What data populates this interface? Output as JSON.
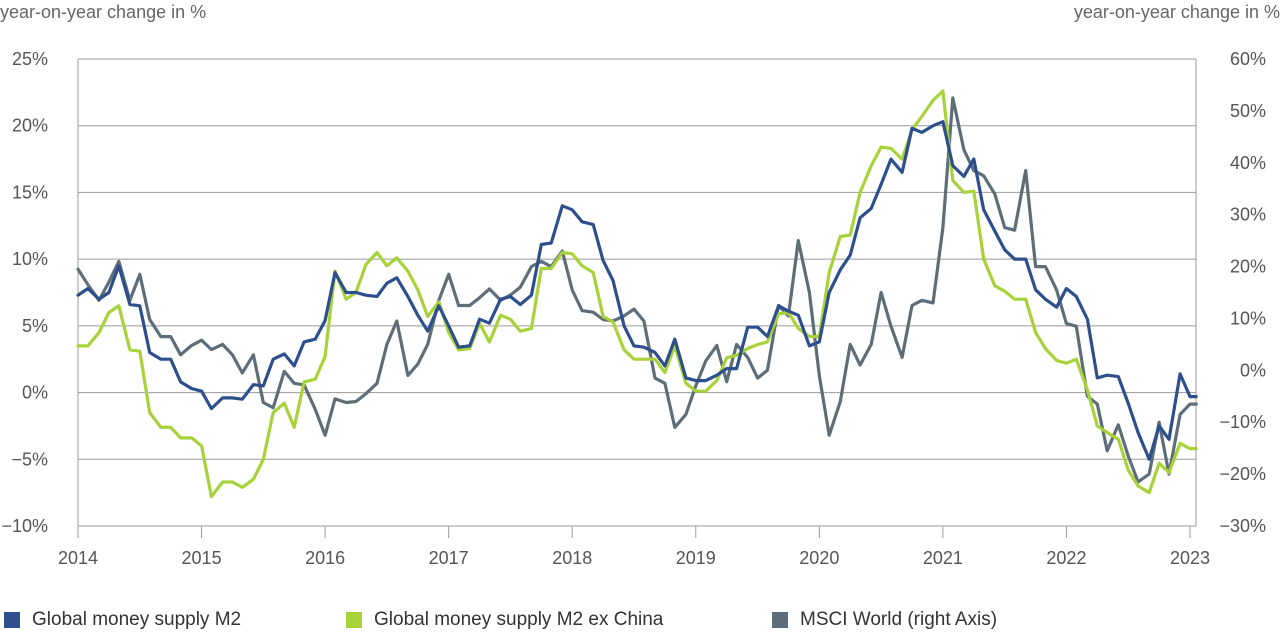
{
  "chart_data": {
    "type": "line",
    "left_axis": {
      "title": "year-on-year change in %",
      "ylim": [
        -10,
        25
      ],
      "ticks": [
        25,
        20,
        15,
        10,
        5,
        0,
        -5,
        -10
      ],
      "tick_labels": [
        "25%",
        "20%",
        "15%",
        "10%",
        "5%",
        "0%",
        "−5%",
        "−10%"
      ]
    },
    "right_axis": {
      "title": "year-on-year change in %",
      "ylim": [
        -30,
        60
      ],
      "ticks": [
        60,
        50,
        40,
        30,
        20,
        10,
        0,
        -10,
        -20,
        -30
      ],
      "tick_labels": [
        "60%",
        "50%",
        "40%",
        "30%",
        "20%",
        "10%",
        "0%",
        "−10%",
        "−20%",
        "−30%"
      ]
    },
    "x_axis": {
      "xlim": [
        2014.0,
        2023.1
      ],
      "ticks": [
        2014,
        2015,
        2016,
        2017,
        2018,
        2019,
        2020,
        2021,
        2022,
        2023
      ],
      "tick_labels": [
        "2014",
        "2015",
        "2016",
        "2017",
        "2018",
        "2019",
        "2020",
        "2021",
        "2022",
        "2023"
      ]
    },
    "grid": "horizontal",
    "legend_position": "bottom",
    "series": [
      {
        "name": "Global money supply M2",
        "axis": "left",
        "color": "#2d4f8e",
        "x": [
          2014.0,
          2014.08,
          2014.17,
          2014.25,
          2014.33,
          2014.42,
          2014.5,
          2014.58,
          2014.67,
          2014.75,
          2014.83,
          2014.92,
          2015.0,
          2015.08,
          2015.17,
          2015.25,
          2015.33,
          2015.42,
          2015.5,
          2015.58,
          2015.67,
          2015.75,
          2015.83,
          2015.92,
          2016.0,
          2016.08,
          2016.17,
          2016.25,
          2016.33,
          2016.42,
          2016.5,
          2016.58,
          2016.67,
          2016.75,
          2016.83,
          2016.92,
          2017.0,
          2017.08,
          2017.17,
          2017.25,
          2017.33,
          2017.42,
          2017.5,
          2017.58,
          2017.67,
          2017.75,
          2017.83,
          2017.92,
          2018.0,
          2018.08,
          2018.17,
          2018.25,
          2018.33,
          2018.42,
          2018.5,
          2018.58,
          2018.67,
          2018.75,
          2018.83,
          2018.92,
          2019.0,
          2019.08,
          2019.17,
          2019.25,
          2019.33,
          2019.42,
          2019.5,
          2019.58,
          2019.67,
          2019.75,
          2019.83,
          2019.92,
          2020.0,
          2020.08,
          2020.17,
          2020.25,
          2020.33,
          2020.42,
          2020.5,
          2020.58,
          2020.67,
          2020.75,
          2020.83,
          2020.92,
          2021.0,
          2021.08,
          2021.17,
          2021.25,
          2021.33,
          2021.42,
          2021.5,
          2021.58,
          2021.67,
          2021.75,
          2021.83,
          2021.92,
          2022.0,
          2022.08,
          2022.17,
          2022.25,
          2022.33,
          2022.42,
          2022.5,
          2022.58,
          2022.67,
          2022.75,
          2022.83,
          2022.92,
          2023.0,
          2023.05
        ],
        "values": [
          7.3,
          7.8,
          7.0,
          7.5,
          9.5,
          6.6,
          6.5,
          3.0,
          2.5,
          2.5,
          0.8,
          0.3,
          0.1,
          -1.2,
          -0.4,
          -0.4,
          -0.5,
          0.6,
          0.5,
          2.5,
          2.9,
          2.0,
          3.8,
          4.0,
          5.4,
          9.0,
          7.5,
          7.5,
          7.3,
          7.2,
          8.2,
          8.6,
          7.2,
          5.8,
          4.6,
          6.5,
          5.0,
          3.4,
          3.5,
          5.5,
          5.2,
          7.0,
          7.2,
          6.6,
          7.3,
          11.1,
          11.2,
          14.0,
          13.7,
          12.8,
          12.6,
          9.9,
          8.4,
          5.0,
          3.5,
          3.4,
          3.0,
          2.0,
          4.0,
          1.1,
          0.9,
          0.9,
          1.3,
          1.8,
          1.8,
          4.9,
          4.9,
          4.2,
          6.5,
          6.1,
          5.8,
          3.5,
          3.8,
          7.5,
          9.2,
          10.3,
          13.1,
          13.8,
          15.6,
          17.5,
          16.5,
          19.8,
          19.5,
          20.0,
          20.3,
          17.0,
          16.2,
          17.5,
          13.7,
          12.1,
          10.7,
          10.0,
          10.0,
          7.7,
          7.0,
          6.4,
          7.8,
          7.2,
          5.5,
          1.1,
          1.3,
          1.2,
          -0.8,
          -3.0,
          -5.0,
          -2.5,
          -3.5,
          1.4,
          -0.3,
          -0.3
        ]
      },
      {
        "name": "Global money supply M2 ex China",
        "axis": "left",
        "color": "#a8d23a",
        "x": [
          2014.0,
          2014.08,
          2014.17,
          2014.25,
          2014.33,
          2014.42,
          2014.5,
          2014.58,
          2014.67,
          2014.75,
          2014.83,
          2014.92,
          2015.0,
          2015.08,
          2015.17,
          2015.25,
          2015.33,
          2015.42,
          2015.5,
          2015.58,
          2015.67,
          2015.75,
          2015.83,
          2015.92,
          2016.0,
          2016.08,
          2016.17,
          2016.25,
          2016.33,
          2016.42,
          2016.5,
          2016.58,
          2016.67,
          2016.75,
          2016.83,
          2016.92,
          2017.0,
          2017.08,
          2017.17,
          2017.25,
          2017.33,
          2017.42,
          2017.5,
          2017.58,
          2017.67,
          2017.75,
          2017.83,
          2017.92,
          2018.0,
          2018.08,
          2018.17,
          2018.25,
          2018.33,
          2018.42,
          2018.5,
          2018.58,
          2018.67,
          2018.75,
          2018.83,
          2018.92,
          2019.0,
          2019.08,
          2019.17,
          2019.25,
          2019.33,
          2019.42,
          2019.5,
          2019.58,
          2019.67,
          2019.75,
          2019.83,
          2019.92,
          2020.0,
          2020.08,
          2020.17,
          2020.25,
          2020.33,
          2020.42,
          2020.5,
          2020.58,
          2020.67,
          2020.75,
          2020.83,
          2020.92,
          2021.0,
          2021.08,
          2021.17,
          2021.25,
          2021.33,
          2021.42,
          2021.5,
          2021.58,
          2021.67,
          2021.75,
          2021.83,
          2021.92,
          2022.0,
          2022.08,
          2022.17,
          2022.25,
          2022.33,
          2022.42,
          2022.5,
          2022.58,
          2022.67,
          2022.75,
          2022.83,
          2022.92,
          2023.0,
          2023.05
        ],
        "values": [
          3.5,
          3.5,
          4.5,
          6.0,
          6.5,
          3.2,
          3.1,
          -1.5,
          -2.6,
          -2.6,
          -3.4,
          -3.4,
          -4.0,
          -7.8,
          -6.7,
          -6.7,
          -7.1,
          -6.5,
          -5.0,
          -1.5,
          -0.8,
          -2.6,
          0.8,
          1.0,
          2.7,
          9.1,
          7.0,
          7.5,
          9.6,
          10.5,
          9.5,
          10.1,
          9.1,
          7.7,
          5.7,
          6.8,
          4.5,
          3.2,
          3.3,
          5.2,
          3.8,
          5.8,
          5.5,
          4.6,
          4.8,
          9.3,
          9.3,
          10.5,
          10.4,
          9.5,
          9.0,
          5.7,
          5.3,
          3.2,
          2.5,
          2.5,
          2.5,
          1.5,
          3.5,
          0.7,
          0.1,
          0.1,
          0.9,
          2.6,
          2.8,
          3.3,
          3.6,
          3.8,
          5.9,
          6.0,
          4.8,
          4.2,
          4.2,
          9.0,
          11.7,
          11.8,
          15.0,
          17.0,
          18.4,
          18.3,
          17.5,
          19.7,
          20.7,
          21.9,
          22.6,
          15.9,
          15.0,
          15.1,
          10.0,
          8.0,
          7.6,
          7.0,
          7.0,
          4.5,
          3.3,
          2.4,
          2.2,
          2.5,
          0.2,
          -2.5,
          -3.0,
          -3.5,
          -5.8,
          -7.0,
          -7.5,
          -5.3,
          -6.0,
          -3.8,
          -4.2,
          -4.2
        ]
      },
      {
        "name": "MSCI World (right Axis)",
        "axis": "right",
        "color": "#5e6e78",
        "x": [
          2014.0,
          2014.08,
          2014.17,
          2014.25,
          2014.33,
          2014.42,
          2014.5,
          2014.58,
          2014.67,
          2014.75,
          2014.83,
          2014.92,
          2015.0,
          2015.08,
          2015.17,
          2015.25,
          2015.33,
          2015.42,
          2015.5,
          2015.58,
          2015.67,
          2015.75,
          2015.83,
          2015.92,
          2016.0,
          2016.08,
          2016.17,
          2016.25,
          2016.33,
          2016.42,
          2016.5,
          2016.58,
          2016.67,
          2016.75,
          2016.83,
          2016.92,
          2017.0,
          2017.08,
          2017.17,
          2017.25,
          2017.33,
          2017.42,
          2017.5,
          2017.58,
          2017.67,
          2017.75,
          2017.83,
          2017.92,
          2018.0,
          2018.08,
          2018.17,
          2018.25,
          2018.33,
          2018.42,
          2018.5,
          2018.58,
          2018.67,
          2018.75,
          2018.83,
          2018.92,
          2019.0,
          2019.08,
          2019.17,
          2019.25,
          2019.33,
          2019.42,
          2019.5,
          2019.58,
          2019.67,
          2019.75,
          2019.83,
          2019.92,
          2020.0,
          2020.08,
          2020.17,
          2020.25,
          2020.33,
          2020.42,
          2020.5,
          2020.58,
          2020.67,
          2020.75,
          2020.83,
          2020.92,
          2021.0,
          2021.08,
          2021.17,
          2021.25,
          2021.33,
          2021.42,
          2021.5,
          2021.58,
          2021.67,
          2021.75,
          2021.83,
          2021.92,
          2022.0,
          2022.08,
          2022.17,
          2022.25,
          2022.33,
          2022.42,
          2022.5,
          2022.58,
          2022.67,
          2022.75,
          2022.83,
          2022.92,
          2023.0,
          2023.05
        ],
        "values": [
          19.5,
          16.5,
          13.5,
          17.0,
          21.0,
          13.5,
          18.5,
          9.8,
          6.5,
          6.5,
          3.0,
          4.8,
          5.8,
          4.0,
          5.0,
          3.0,
          -0.5,
          3.0,
          -6.2,
          -7.2,
          -0.2,
          -2.5,
          -2.8,
          -7.5,
          -12.5,
          -5.5,
          -6.2,
          -6.0,
          -4.5,
          -2.5,
          5.0,
          9.5,
          -1.0,
          1.2,
          5.0,
          13.5,
          18.5,
          12.5,
          12.5,
          14.0,
          15.7,
          13.5,
          14.5,
          16.0,
          20.0,
          21.0,
          20.0,
          23.0,
          15.5,
          11.5,
          11.2,
          9.8,
          9.5,
          10.5,
          11.8,
          9.5,
          -1.5,
          -2.5,
          -11.0,
          -8.5,
          -3.0,
          1.8,
          4.8,
          -2.2,
          5.0,
          2.5,
          -1.5,
          0.0,
          12.5,
          10.5,
          25.0,
          15.0,
          -1.0,
          -12.5,
          -6.0,
          5.0,
          1.0,
          5.0,
          15.0,
          8.5,
          2.5,
          12.5,
          13.5,
          13.0,
          27.5,
          52.5,
          42.5,
          38.5,
          37.5,
          34.0,
          27.5,
          27.0,
          38.5,
          20.0,
          20.0,
          15.5,
          9.0,
          8.5,
          -5.0,
          -6.5,
          -15.5,
          -10.5,
          -16.5,
          -21.5,
          -20.0,
          -10.0,
          -20.0,
          -8.5,
          -6.5,
          -6.5
        ]
      }
    ]
  }
}
